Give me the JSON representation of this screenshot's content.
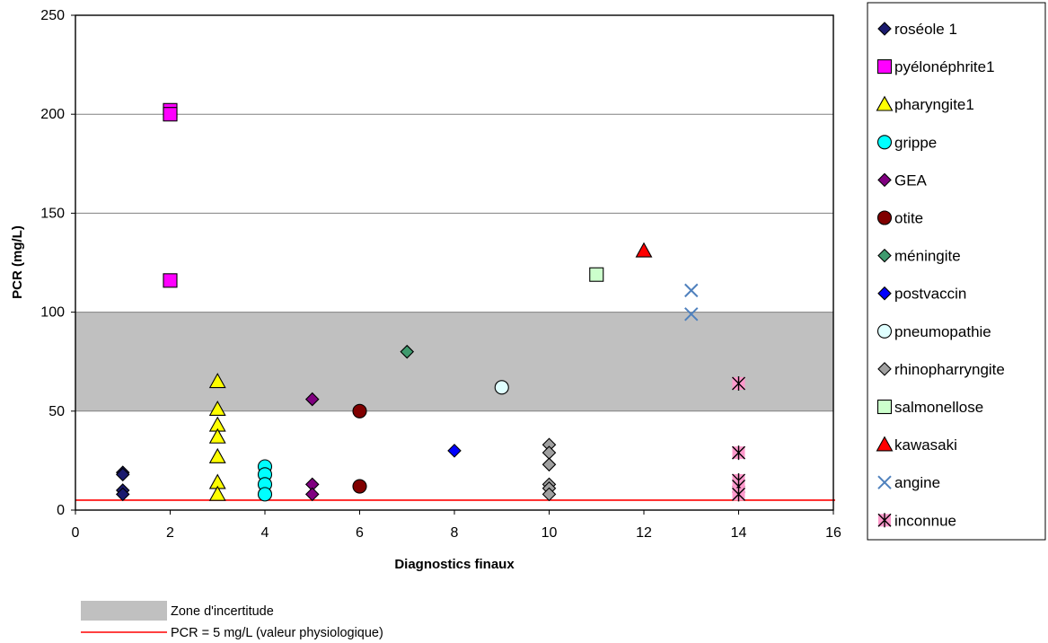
{
  "chart_data": {
    "type": "scatter",
    "xlabel": "Diagnostics finaux",
    "ylabel": "PCR (mg/L)",
    "xlim": [
      0,
      16
    ],
    "ylim": [
      0,
      250
    ],
    "xticks": [
      "0",
      "2",
      "4",
      "6",
      "8",
      "10",
      "12",
      "14",
      "16"
    ],
    "yticks": [
      "0",
      "50",
      "100",
      "150",
      "200",
      "250"
    ],
    "grid": "horizontal",
    "legend_position": "right",
    "uncertainty_zone": {
      "label": "Zone d'incertitude",
      "range": [
        50,
        100
      ],
      "color": "#c0c0c0"
    },
    "reference_line": {
      "label": "PCR = 5 mg/L (valeur physiologique)",
      "y": 5,
      "color": "#ff0000"
    },
    "series": [
      {
        "name": "roséole 1",
        "marker": "diamond",
        "fill": "#1a1a6e",
        "points": [
          [
            1,
            19
          ],
          [
            1,
            18
          ],
          [
            1,
            10
          ],
          [
            1,
            8
          ]
        ]
      },
      {
        "name": "pyélonéphrite1",
        "marker": "square",
        "fill": "#ff00ff",
        "points": [
          [
            2,
            202
          ],
          [
            2,
            200
          ],
          [
            2,
            116
          ]
        ]
      },
      {
        "name": "pharyngite1",
        "marker": "triangle",
        "fill": "#ffff00",
        "points": [
          [
            3,
            65
          ],
          [
            3,
            51
          ],
          [
            3,
            43
          ],
          [
            3,
            37
          ],
          [
            3,
            27
          ],
          [
            3,
            14
          ],
          [
            3,
            8
          ]
        ]
      },
      {
        "name": "grippe",
        "marker": "circle",
        "fill": "#00ffff",
        "points": [
          [
            4,
            22
          ],
          [
            4,
            18
          ],
          [
            4,
            13
          ],
          [
            4,
            8
          ]
        ]
      },
      {
        "name": "GEA",
        "marker": "diamond",
        "fill": "#800080",
        "points": [
          [
            5,
            56
          ],
          [
            5,
            13
          ],
          [
            5,
            8
          ]
        ]
      },
      {
        "name": "otite",
        "marker": "circle",
        "fill": "#800000",
        "points": [
          [
            6,
            50
          ],
          [
            6,
            12
          ]
        ]
      },
      {
        "name": "méningite",
        "marker": "diamond",
        "fill": "#3f9a6e",
        "points": [
          [
            7,
            80
          ]
        ]
      },
      {
        "name": "postvaccin",
        "marker": "diamond",
        "fill": "#0000ff",
        "points": [
          [
            8,
            30
          ]
        ]
      },
      {
        "name": "pneumopathie",
        "marker": "circle",
        "fill": "#e0ffff",
        "points": [
          [
            9,
            62
          ]
        ]
      },
      {
        "name": "rhinopharryngite",
        "marker": "diamond",
        "fill": "#a0a0a0",
        "points": [
          [
            10,
            33
          ],
          [
            10,
            29
          ],
          [
            10,
            23
          ],
          [
            10,
            13
          ],
          [
            10,
            11
          ],
          [
            10,
            8
          ]
        ]
      },
      {
        "name": "salmonellose",
        "marker": "square",
        "fill": "#ccffcc",
        "points": [
          [
            11,
            119
          ]
        ]
      },
      {
        "name": "kawasaki",
        "marker": "triangle",
        "fill": "#ff0000",
        "points": [
          [
            12,
            131
          ]
        ]
      },
      {
        "name": "angine",
        "marker": "x",
        "fill": "#4f81bd",
        "points": [
          [
            13,
            111
          ],
          [
            13,
            99
          ]
        ]
      },
      {
        "name": "inconnue",
        "marker": "star",
        "fill": "#ff99cc",
        "points": [
          [
            14,
            64
          ],
          [
            14,
            29
          ],
          [
            14,
            15
          ],
          [
            14,
            12
          ],
          [
            14,
            8
          ]
        ]
      }
    ]
  }
}
